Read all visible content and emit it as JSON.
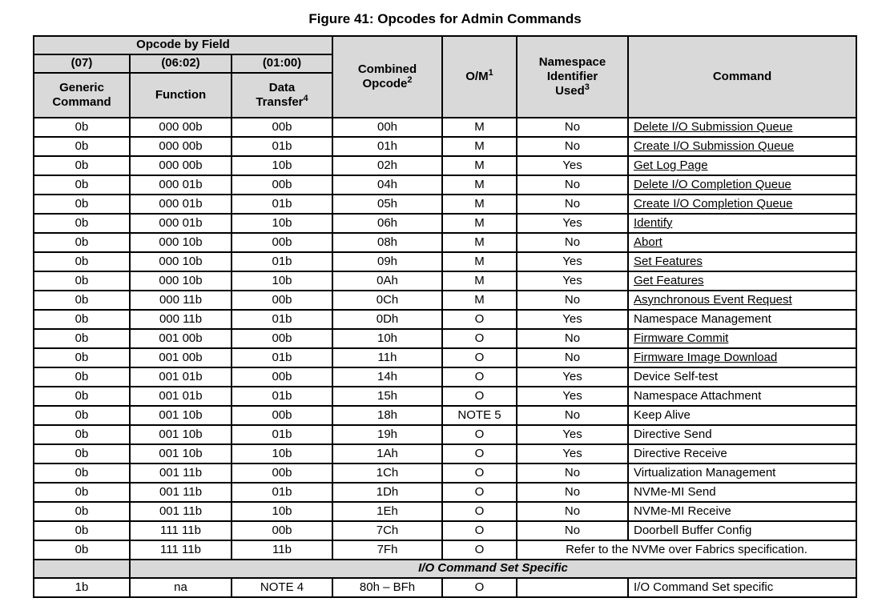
{
  "title": "Figure 41: Opcodes for Admin Commands",
  "colors": {
    "header_bg": "#d9d9d9",
    "border": "#000000",
    "text": "#000000",
    "page_bg": "#ffffff"
  },
  "table": {
    "header": {
      "opcode_by_field": "Opcode by Field",
      "bit_07": "(07)",
      "bit_06_02": "(06:02)",
      "bit_01_00": "(01:00)",
      "generic_line1": "Generic",
      "generic_line2": "Command",
      "function": "Function",
      "transfer_line1": "Data",
      "transfer_line2": "Transfer",
      "transfer_sup": "4",
      "combined_line1": "Combined",
      "combined_line2": "Opcode",
      "combined_sup": "2",
      "om": "O/M",
      "om_sup": "1",
      "nsid_line1": "Namespace",
      "nsid_line2": "Identifier",
      "nsid_line3": "Used",
      "nsid_sup": "3",
      "command": "Command"
    },
    "rows": [
      {
        "generic": "0b",
        "function": "000 00b",
        "transfer": "00b",
        "opcode": "00h",
        "om": "M",
        "nsid": "No",
        "command": "Delete I/O Submission Queue",
        "link": true
      },
      {
        "generic": "0b",
        "function": "000 00b",
        "transfer": "01b",
        "opcode": "01h",
        "om": "M",
        "nsid": "No",
        "command": "Create I/O Submission Queue",
        "link": true
      },
      {
        "generic": "0b",
        "function": "000 00b",
        "transfer": "10b",
        "opcode": "02h",
        "om": "M",
        "nsid": "Yes",
        "command": "Get Log Page",
        "link": true
      },
      {
        "generic": "0b",
        "function": "000 01b",
        "transfer": "00b",
        "opcode": "04h",
        "om": "M",
        "nsid": "No",
        "command": "Delete I/O Completion Queue",
        "link": true
      },
      {
        "generic": "0b",
        "function": "000 01b",
        "transfer": "01b",
        "opcode": "05h",
        "om": "M",
        "nsid": "No",
        "command": "Create I/O Completion Queue",
        "link": true
      },
      {
        "generic": "0b",
        "function": "000 01b",
        "transfer": "10b",
        "opcode": "06h",
        "om": "M",
        "nsid": "Yes",
        "command": "Identify",
        "link": true
      },
      {
        "generic": "0b",
        "function": "000 10b",
        "transfer": "00b",
        "opcode": "08h",
        "om": "M",
        "nsid": "No",
        "command": "Abort",
        "link": true
      },
      {
        "generic": "0b",
        "function": "000 10b",
        "transfer": "01b",
        "opcode": "09h",
        "om": "M",
        "nsid": "Yes",
        "command": "Set Features",
        "link": true
      },
      {
        "generic": "0b",
        "function": "000 10b",
        "transfer": "10b",
        "opcode": "0Ah",
        "om": "M",
        "nsid": "Yes",
        "command": "Get Features",
        "link": true
      },
      {
        "generic": "0b",
        "function": "000 11b",
        "transfer": "00b",
        "opcode": "0Ch",
        "om": "M",
        "nsid": "No",
        "command": "Asynchronous Event Request",
        "link": true
      },
      {
        "generic": "0b",
        "function": "000 11b",
        "transfer": "01b",
        "opcode": "0Dh",
        "om": "O",
        "nsid": "Yes",
        "command": "Namespace Management",
        "link": false
      },
      {
        "generic": "0b",
        "function": "001 00b",
        "transfer": "00b",
        "opcode": "10h",
        "om": "O",
        "nsid": "No",
        "command": "Firmware Commit",
        "link": true
      },
      {
        "generic": "0b",
        "function": "001 00b",
        "transfer": "01b",
        "opcode": "11h",
        "om": "O",
        "nsid": "No",
        "command": "Firmware Image Download",
        "link": true
      },
      {
        "generic": "0b",
        "function": "001 01b",
        "transfer": "00b",
        "opcode": "14h",
        "om": "O",
        "nsid": "Yes",
        "command": "Device Self-test",
        "link": false
      },
      {
        "generic": "0b",
        "function": "001 01b",
        "transfer": "01b",
        "opcode": "15h",
        "om": "O",
        "nsid": "Yes",
        "command": "Namespace Attachment",
        "link": false
      },
      {
        "generic": "0b",
        "function": "001 10b",
        "transfer": "00b",
        "opcode": "18h",
        "om": "NOTE 5",
        "nsid": "No",
        "command": "Keep Alive",
        "link": false
      },
      {
        "generic": "0b",
        "function": "001 10b",
        "transfer": "01b",
        "opcode": "19h",
        "om": "O",
        "nsid": "Yes",
        "command": "Directive Send",
        "link": false
      },
      {
        "generic": "0b",
        "function": "001 10b",
        "transfer": "10b",
        "opcode": "1Ah",
        "om": "O",
        "nsid": "Yes",
        "command": "Directive Receive",
        "link": false
      },
      {
        "generic": "0b",
        "function": "001 11b",
        "transfer": "00b",
        "opcode": "1Ch",
        "om": "O",
        "nsid": "No",
        "command": "Virtualization Management",
        "link": false
      },
      {
        "generic": "0b",
        "function": "001 11b",
        "transfer": "01b",
        "opcode": "1Dh",
        "om": "O",
        "nsid": "No",
        "command": "NVMe-MI Send",
        "link": false
      },
      {
        "generic": "0b",
        "function": "001 11b",
        "transfer": "10b",
        "opcode": "1Eh",
        "om": "O",
        "nsid": "No",
        "command": "NVMe-MI Receive",
        "link": false
      },
      {
        "generic": "0b",
        "function": "111 11b",
        "transfer": "00b",
        "opcode": "7Ch",
        "om": "O",
        "nsid": "No",
        "command": "Doorbell Buffer Config",
        "link": false
      },
      {
        "generic": "0b",
        "function": "111 11b",
        "transfer": "11b",
        "opcode": "7Fh",
        "om": "O",
        "merged_note": "Refer to the NVMe over Fabrics specification."
      }
    ],
    "section_label": "I/O Command Set Specific",
    "io_row": {
      "generic": "1b",
      "function": "na",
      "transfer": "NOTE 4",
      "opcode": "80h – BFh",
      "om": "O",
      "nsid": "",
      "command": "I/O Command Set specific",
      "link": false
    }
  }
}
